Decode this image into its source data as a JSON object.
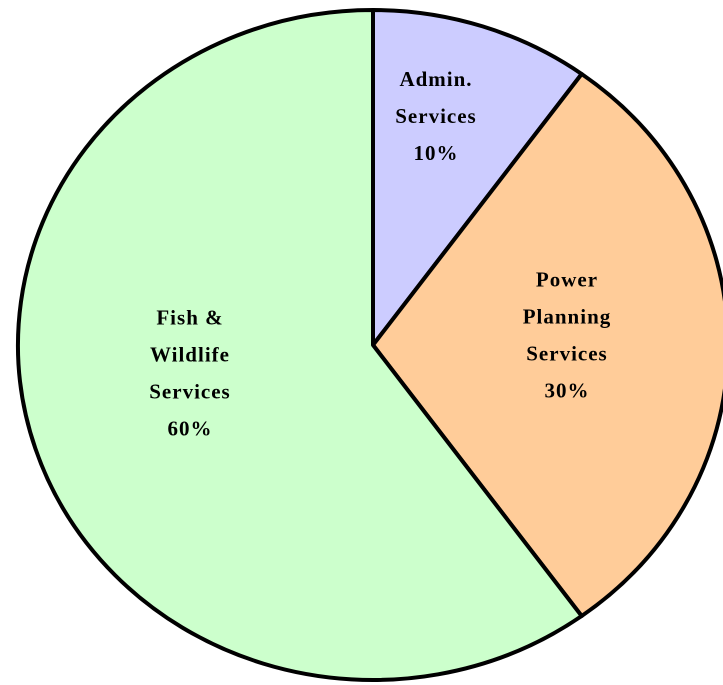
{
  "chart_data": {
    "type": "pie",
    "categories": [
      [
        "Admin.",
        "Services"
      ],
      [
        "Power",
        "Planning",
        "Services"
      ],
      [
        "Fish &",
        "Wildlife",
        "Services"
      ]
    ],
    "values": [
      10,
      30,
      60
    ],
    "value_labels": [
      "10%",
      "30%",
      "60%"
    ],
    "colors": [
      "#ccccff",
      "#ffcc99",
      "#ccffcc"
    ]
  }
}
